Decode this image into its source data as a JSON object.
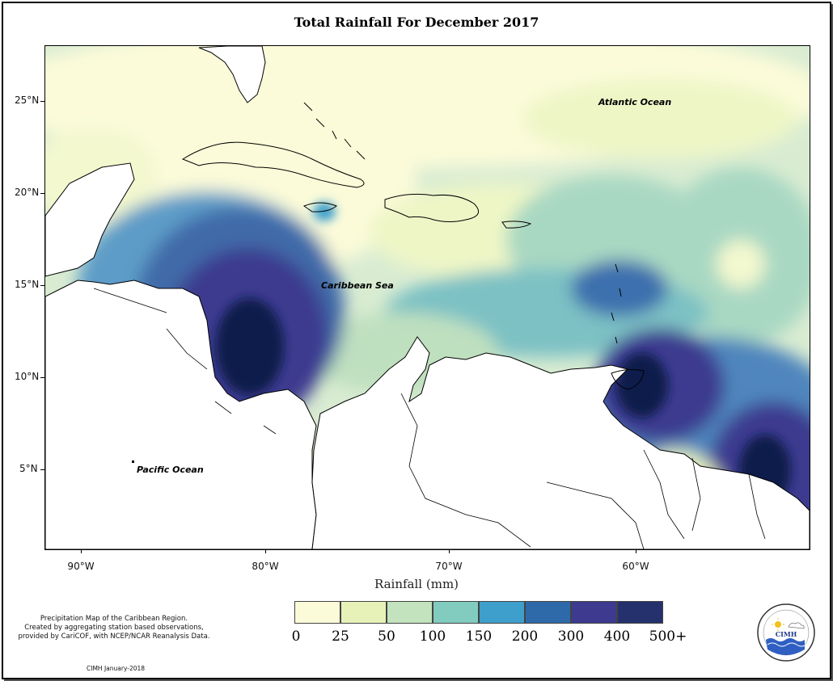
{
  "title": "Total Rainfall For December 2017",
  "axis": {
    "x_title": "Rainfall (mm)",
    "lat_labels": [
      "25°N",
      "20°N",
      "15°N",
      "10°N",
      "5°N"
    ],
    "lon_labels": [
      "90°W",
      "80°W",
      "70°W",
      "60°W"
    ]
  },
  "map_labels": {
    "atlantic": "Atlantic Ocean",
    "caribbean": "Caribbean Sea",
    "pacific": "Pacific Ocean"
  },
  "legend": {
    "ticks": [
      "0",
      "25",
      "50",
      "100",
      "150",
      "200",
      "300",
      "400",
      "500+"
    ],
    "colors": [
      "#fbfbd9",
      "#e6f2b8",
      "#c2e3bd",
      "#82cbbf",
      "#3e9fcd",
      "#2e6aa9",
      "#3d3a8f",
      "#24316d",
      "#0f1d4b"
    ]
  },
  "credit": {
    "line1": "Precipitation Map of the Caribbean Region.",
    "line2": "Created by aggregating station based observations,",
    "line3": "provided by CariCOF, with NCEP/NCAR Reanalysis Data.",
    "date": "CIMH January-2018"
  },
  "logo": {
    "text": "CIMH"
  }
}
